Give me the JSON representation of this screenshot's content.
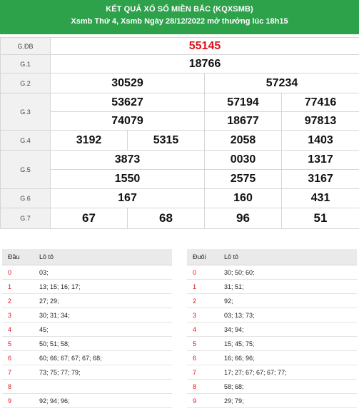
{
  "header": {
    "title": "KẾT QUẢ XỔ SỐ MIỀN BẮC (KQXSMB)",
    "subtitle": "Xsmb Thứ 4, Xsmb Ngày 28/12/2022 mở thưởng lúc 18h15"
  },
  "prizes": {
    "gdb": {
      "label": "G.ĐB",
      "values": [
        "55145"
      ]
    },
    "g1": {
      "label": "G.1",
      "values": [
        "18766"
      ]
    },
    "g2": {
      "label": "G.2",
      "values": [
        "30529",
        "57234"
      ]
    },
    "g3": {
      "label": "G.3",
      "values": [
        "53627",
        "57194",
        "77416",
        "74079",
        "18677",
        "97813"
      ]
    },
    "g4": {
      "label": "G.4",
      "values": [
        "3192",
        "5315",
        "2058",
        "1403"
      ]
    },
    "g5": {
      "label": "G.5",
      "values": [
        "3873",
        "0030",
        "1317",
        "1550",
        "2575",
        "3167"
      ]
    },
    "g6": {
      "label": "G.6",
      "values": [
        "167",
        "160",
        "431"
      ]
    },
    "g7": {
      "label": "G.7",
      "values": [
        "67",
        "68",
        "96",
        "51"
      ]
    }
  },
  "loto_dau": {
    "col1": "Đầu",
    "col2": "Lô tô",
    "rows": [
      {
        "k": "0",
        "v": "03;"
      },
      {
        "k": "1",
        "v": "13; 15; 16; 17;"
      },
      {
        "k": "2",
        "v": "27; 29;"
      },
      {
        "k": "3",
        "v": "30; 31; 34;"
      },
      {
        "k": "4",
        "v": "45;"
      },
      {
        "k": "5",
        "v": "50; 51; 58;"
      },
      {
        "k": "6",
        "v": "60; 66; 67; 67; 67; 68;"
      },
      {
        "k": "7",
        "v": "73; 75; 77; 79;"
      },
      {
        "k": "8",
        "v": ""
      },
      {
        "k": "9",
        "v": "92; 94; 96;"
      }
    ]
  },
  "loto_duoi": {
    "col1": "Đuôi",
    "col2": "Lô tô",
    "rows": [
      {
        "k": "0",
        "v": "30; 50; 60;"
      },
      {
        "k": "1",
        "v": "31; 51;"
      },
      {
        "k": "2",
        "v": "92;"
      },
      {
        "k": "3",
        "v": "03; 13; 73;"
      },
      {
        "k": "4",
        "v": "34; 94;"
      },
      {
        "k": "5",
        "v": "15; 45; 75;"
      },
      {
        "k": "6",
        "v": "16; 66; 96;"
      },
      {
        "k": "7",
        "v": "17; 27; 67; 67; 67; 77;"
      },
      {
        "k": "8",
        "v": "58; 68;"
      },
      {
        "k": "9",
        "v": "29; 79;"
      }
    ]
  }
}
